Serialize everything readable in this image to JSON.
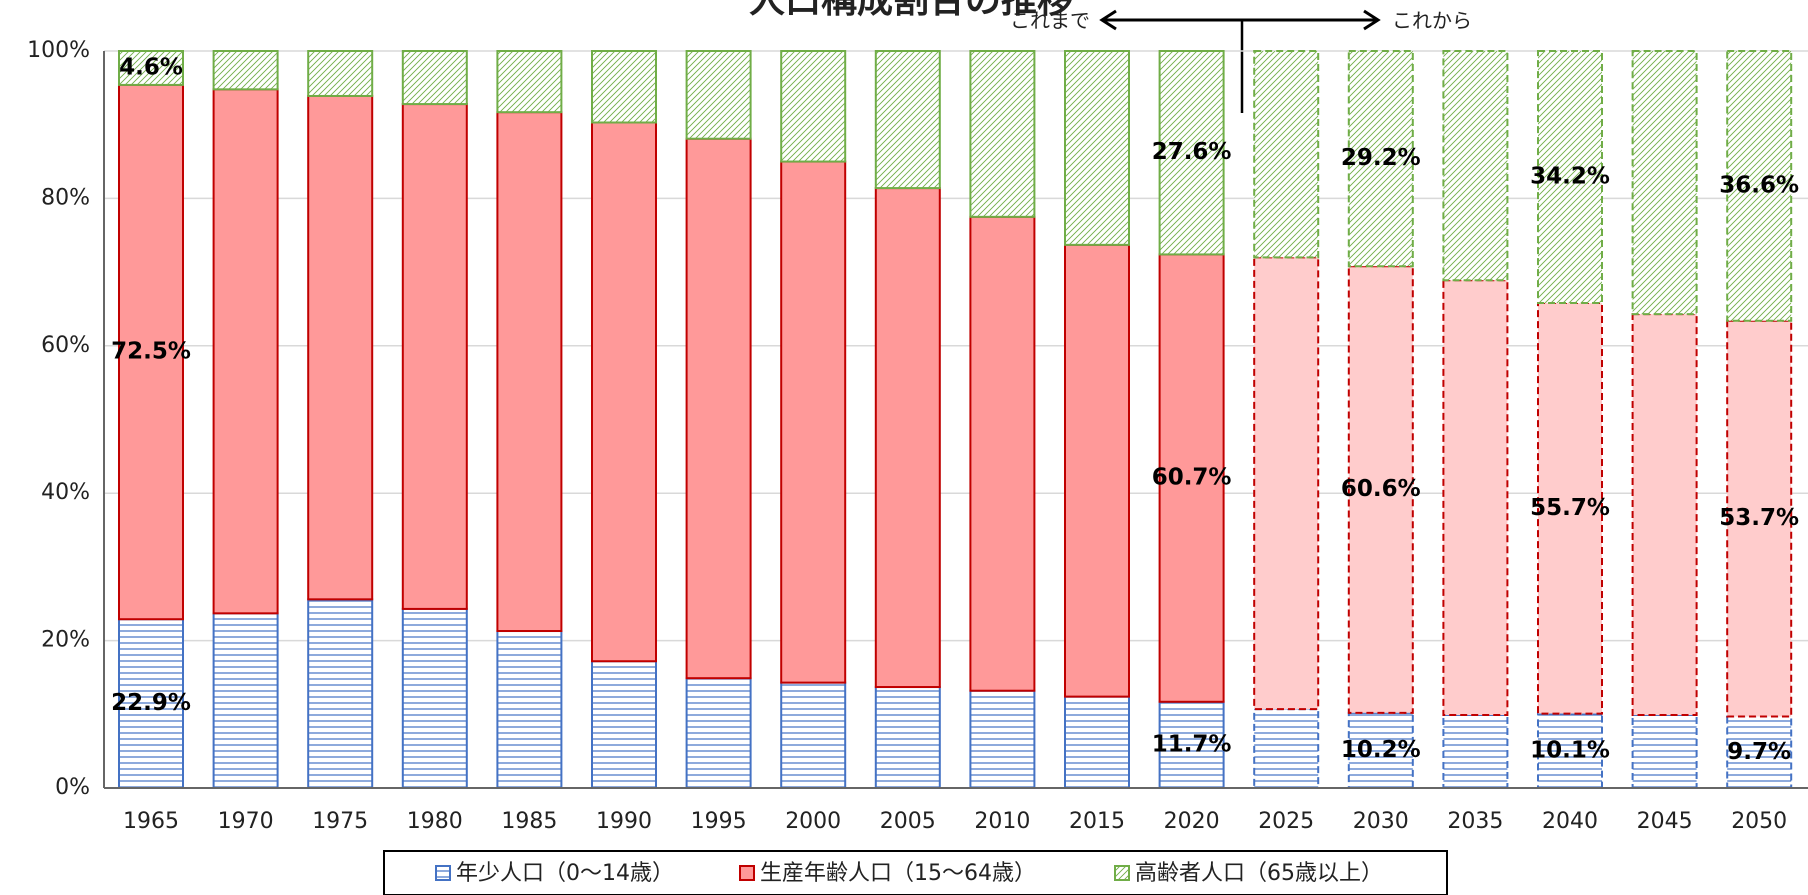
{
  "chart_data": {
    "type": "stacked_bar",
    "title": "人口構成割合の推移",
    "annotations": {
      "past": "これまで",
      "future": "これから"
    },
    "projection_start": "2025",
    "categories": [
      "1965",
      "1970",
      "1975",
      "1980",
      "1985",
      "1990",
      "1995",
      "2000",
      "2005",
      "2010",
      "2015",
      "2020",
      "2025",
      "2030",
      "2035",
      "2040",
      "2045",
      "2050"
    ],
    "series": [
      {
        "name": "年少人口（0～14歳）",
        "color": "#4472c4",
        "edge_color": "#4472c4",
        "projection_color": "#4472c4",
        "values": [
          22.9,
          23.7,
          25.6,
          24.3,
          21.3,
          17.2,
          14.9,
          14.3,
          13.7,
          13.2,
          12.4,
          11.7,
          10.7,
          10.2,
          9.9,
          10.1,
          9.9,
          9.7
        ],
        "value_labels": [
          "22.9%",
          null,
          null,
          null,
          null,
          null,
          null,
          null,
          null,
          null,
          null,
          "11.7%",
          null,
          "10.2%",
          null,
          "10.1%",
          null,
          "9.7%"
        ]
      },
      {
        "name": "生産年齢人口（15～64歳）",
        "color": "#ff9999",
        "edge_color": "#c00000",
        "projection_color": "#ffcccc",
        "values": [
          72.5,
          71.1,
          68.3,
          68.5,
          70.4,
          73.1,
          73.2,
          70.7,
          67.7,
          64.3,
          61.3,
          60.7,
          61.3,
          60.6,
          59.0,
          55.7,
          54.4,
          53.7
        ],
        "value_labels": [
          "72.5%",
          null,
          null,
          null,
          null,
          null,
          null,
          null,
          null,
          null,
          null,
          "60.7%",
          null,
          "60.6%",
          null,
          "55.7%",
          null,
          "53.7%"
        ]
      },
      {
        "name": "高齢者人口（65歳以上）",
        "color": "#70ad47",
        "edge_color": "#70ad47",
        "projection_color": "#70ad47",
        "values": [
          4.6,
          5.2,
          6.1,
          7.2,
          8.3,
          9.7,
          11.9,
          15.0,
          18.6,
          22.5,
          26.3,
          27.6,
          28.0,
          29.2,
          31.1,
          34.2,
          35.7,
          36.6
        ],
        "value_labels": [
          "4.6%",
          null,
          null,
          null,
          null,
          null,
          null,
          null,
          null,
          null,
          null,
          "27.6%",
          null,
          "29.2%",
          null,
          "34.2%",
          null,
          "36.6%"
        ]
      }
    ],
    "ylim": [
      0,
      100
    ],
    "yticks": [
      {
        "value": 0,
        "label": "0%"
      },
      {
        "value": 20,
        "label": "20%"
      },
      {
        "value": 40,
        "label": "40%"
      },
      {
        "value": 60,
        "label": "60%"
      },
      {
        "value": 80,
        "label": "80%"
      },
      {
        "value": 100,
        "label": "100%"
      }
    ],
    "grid": true,
    "legend": "bottom"
  }
}
